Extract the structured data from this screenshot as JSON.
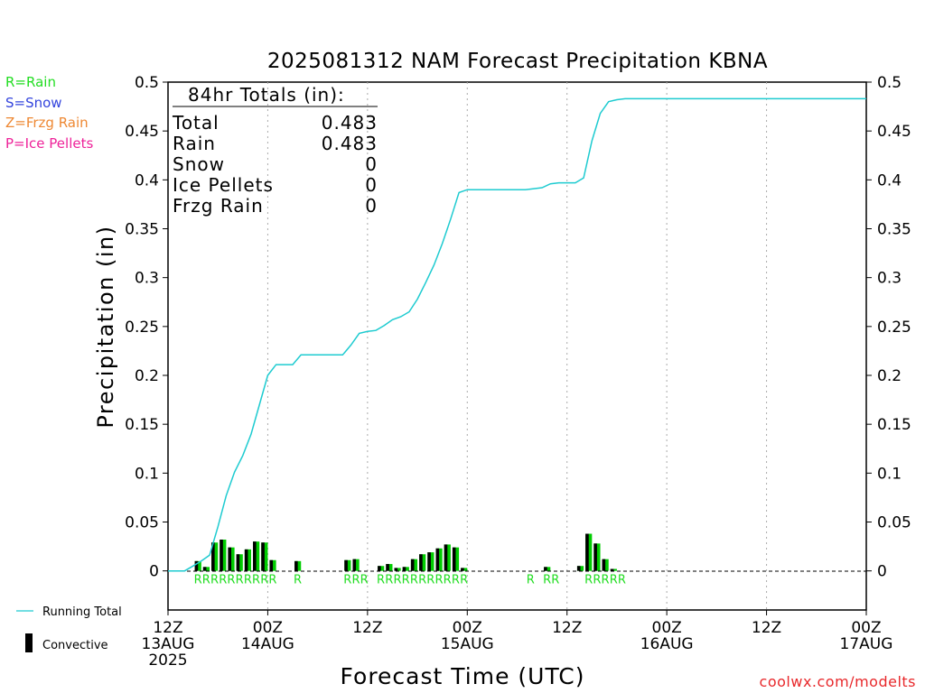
{
  "chart_data": {
    "type": "bar",
    "title": "2025081312 NAM Forecast Precipitation KBNA",
    "xlabel": "Forecast Time (UTC)",
    "ylabel": "Precipitation (in)",
    "ylim": [
      -0.04,
      0.5
    ],
    "xlim": [
      0,
      84
    ],
    "y_ticks": [
      0,
      0.05,
      0.1,
      0.15,
      0.2,
      0.25,
      0.3,
      0.35,
      0.4,
      0.45,
      0.5
    ],
    "y_tick_labels": [
      "0",
      "0.05",
      "0.1",
      "0.15",
      "0.2",
      "0.25",
      "0.3",
      "0.35",
      "0.4",
      "0.45",
      "0.5"
    ],
    "x_ticks": [
      {
        "hour": 0,
        "lines": [
          "12Z",
          "13AUG",
          "2025"
        ]
      },
      {
        "hour": 12,
        "lines": [
          "00Z",
          "14AUG"
        ]
      },
      {
        "hour": 24,
        "lines": [
          "12Z"
        ]
      },
      {
        "hour": 36,
        "lines": [
          "00Z",
          "15AUG"
        ]
      },
      {
        "hour": 48,
        "lines": [
          "12Z"
        ]
      },
      {
        "hour": 60,
        "lines": [
          "00Z",
          "16AUG"
        ]
      },
      {
        "hour": 72,
        "lines": [
          "12Z"
        ]
      },
      {
        "hour": 84,
        "lines": [
          "00Z",
          "17AUG"
        ]
      }
    ],
    "grid": "vertical dotted at 12-hour intervals",
    "series": [
      {
        "name": "Convective",
        "kind": "bar",
        "color": "#000000",
        "x": [
          4,
          5,
          6,
          7,
          8,
          9,
          10,
          11,
          12,
          13,
          16,
          22,
          23,
          26,
          27,
          28,
          29,
          30,
          31,
          32,
          33,
          34,
          35,
          36,
          46,
          50,
          51,
          52,
          53,
          54
        ],
        "values": [
          0.01,
          0.004,
          0.029,
          0.032,
          0.024,
          0.017,
          0.022,
          0.03,
          0.029,
          0.011,
          0.01,
          0.011,
          0.012,
          0.005,
          0.007,
          0.003,
          0.004,
          0.012,
          0.017,
          0.019,
          0.023,
          0.027,
          0.024,
          0.003,
          0.004,
          0.005,
          0.038,
          0.028,
          0.012,
          0.002
        ]
      },
      {
        "name": "Rain",
        "kind": "bar",
        "color": "#00cc00",
        "x": [
          4,
          5,
          6,
          7,
          8,
          9,
          10,
          11,
          12,
          13,
          16,
          22,
          23,
          26,
          27,
          28,
          29,
          30,
          31,
          32,
          33,
          34,
          35,
          36,
          46,
          50,
          51,
          52,
          53,
          54
        ],
        "values": [
          0.01,
          0.004,
          0.029,
          0.032,
          0.024,
          0.017,
          0.022,
          0.03,
          0.029,
          0.011,
          0.01,
          0.011,
          0.012,
          0.005,
          0.007,
          0.003,
          0.004,
          0.012,
          0.017,
          0.019,
          0.023,
          0.027,
          0.024,
          0.003,
          0.004,
          0.005,
          0.038,
          0.028,
          0.012,
          0.002
        ]
      },
      {
        "name": "Running Total",
        "kind": "line",
        "color": "#1ecbd0",
        "x": [
          0,
          1,
          2,
          3,
          4,
          5,
          6,
          7,
          8,
          9,
          10,
          11,
          12,
          13,
          14,
          15,
          16,
          17,
          18,
          19,
          20,
          21,
          22,
          23,
          24,
          25,
          26,
          27,
          28,
          29,
          30,
          31,
          32,
          33,
          34,
          35,
          36,
          37,
          38,
          39,
          40,
          41,
          42,
          43,
          44,
          45,
          46,
          47,
          48,
          49,
          50,
          51,
          52,
          53,
          54,
          55,
          56,
          57,
          58,
          59,
          60,
          62,
          66,
          70,
          74,
          78,
          82,
          84
        ],
        "values": [
          0,
          0,
          0,
          0.005,
          0.01,
          0.016,
          0.045,
          0.077,
          0.101,
          0.118,
          0.14,
          0.17,
          0.2,
          0.211,
          0.211,
          0.211,
          0.221,
          0.221,
          0.221,
          0.221,
          0.221,
          0.221,
          0.231,
          0.243,
          0.245,
          0.246,
          0.251,
          0.257,
          0.26,
          0.265,
          0.278,
          0.295,
          0.313,
          0.335,
          0.36,
          0.387,
          0.39,
          0.39,
          0.39,
          0.39,
          0.39,
          0.39,
          0.39,
          0.39,
          0.391,
          0.392,
          0.396,
          0.397,
          0.397,
          0.397,
          0.402,
          0.44,
          0.468,
          0.48,
          0.482,
          0.483,
          0.483,
          0.483,
          0.483,
          0.483,
          0.483,
          0.483,
          0.483,
          0.483,
          0.483,
          0.483,
          0.483,
          0.483
        ]
      }
    ],
    "ptype_markers": {
      "color": "#22dd22",
      "x": [
        4,
        5,
        6,
        7,
        8,
        9,
        10,
        11,
        12,
        13,
        16,
        22,
        23,
        24,
        26,
        27,
        28,
        29,
        30,
        31,
        32,
        33,
        34,
        35,
        36,
        44,
        46,
        47,
        51,
        52,
        53,
        54,
        55
      ],
      "labels": [
        "R",
        "R",
        "R",
        "R",
        "R",
        "R",
        "R",
        "R",
        "R",
        "R",
        "R",
        "R",
        "R",
        "R",
        "R",
        "R",
        "R",
        "R",
        "R",
        "R",
        "R",
        "R",
        "R",
        "R",
        "R",
        "R",
        "R",
        "R",
        "R",
        "R",
        "R",
        "R",
        "R"
      ]
    },
    "totals_box": {
      "heading": "84hr Totals (in):",
      "rows": [
        {
          "label": "Total",
          "value": "0.483"
        },
        {
          "label": "Rain",
          "value": "0.483"
        },
        {
          "label": "Snow",
          "value": "0"
        },
        {
          "label": "Ice Pellets",
          "value": "0"
        },
        {
          "label": "Frzg Rain",
          "value": "0"
        }
      ]
    },
    "ptype_key": [
      {
        "text": "R=Rain",
        "color": "#22dd22"
      },
      {
        "text": "S=Snow",
        "color": "#3344dd"
      },
      {
        "text": "Z=Frzg Rain",
        "color": "#ee8833"
      },
      {
        "text": "P=Ice Pellets",
        "color": "#ee2299"
      }
    ],
    "legend": [
      {
        "label": "Running Total",
        "symbol": "line",
        "color": "#1ecbd0"
      },
      {
        "label": "Convective",
        "symbol": "bar",
        "color": "#000000"
      }
    ],
    "legend_placement": "bottom-left outside plot",
    "credit": "coolwx.com/modelts"
  }
}
